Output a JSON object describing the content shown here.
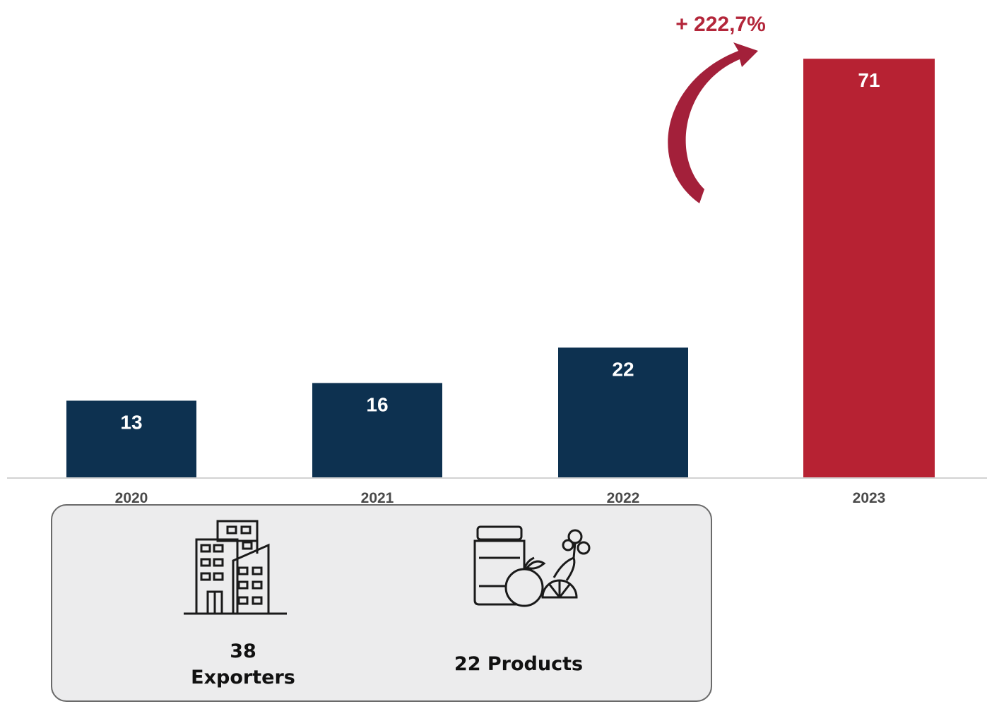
{
  "chart_data": {
    "type": "bar",
    "categories": [
      "2020",
      "2021",
      "2022",
      "2023"
    ],
    "values": [
      13,
      16,
      22,
      71
    ],
    "value_labels": [
      "13",
      "16",
      "22",
      "71"
    ],
    "bar_colors": [
      "#0d3150",
      "#0d3150",
      "#0d3150",
      "#b72233"
    ],
    "ylim": [
      0,
      80
    ],
    "grid": false,
    "legend": "none",
    "annotation": "+ 222,7%",
    "annotation_color": "#b3263a"
  },
  "info": {
    "exporters_count": "38",
    "exporters_label": "Exporters",
    "products_label": "22 Products",
    "exporters_icon": "buildings-icon",
    "products_icon": "food-jar-fruit-icon"
  }
}
